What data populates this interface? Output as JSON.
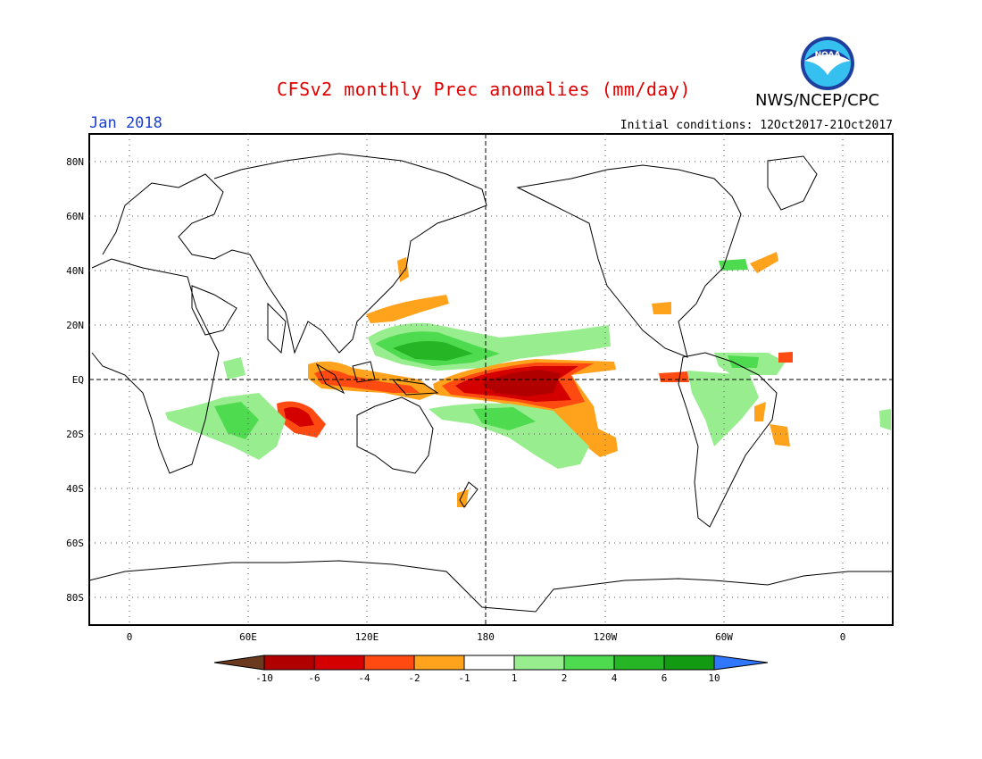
{
  "header": {
    "title": "CFSv2 monthly Prec anomalies (mm/day)",
    "org": "NWS/NCEP/CPC",
    "month": "Jan 2018",
    "initial_conditions": "Initial conditions: 12Oct2017-21Oct2017",
    "logo_text": "NOAA"
  },
  "map": {
    "lat_labels": [
      "80N",
      "60N",
      "40N",
      "20N",
      "EQ",
      "20S",
      "40S",
      "60S",
      "80S"
    ],
    "lon_labels": [
      "0",
      "60E",
      "120E",
      "180",
      "120W",
      "60W",
      "0"
    ]
  },
  "colorbar": {
    "labels": [
      "-10",
      "-6",
      "-4",
      "-2",
      "-1",
      "1",
      "2",
      "4",
      "6",
      "10"
    ],
    "colors": [
      "#6b3a1e",
      "#b00000",
      "#d40000",
      "#ff4a12",
      "#ffa21c",
      "#ffffff",
      "#98ee8f",
      "#4fdb4f",
      "#25b525",
      "#129a12",
      "#2f77ff"
    ]
  },
  "colors": {
    "title": "#e00000",
    "month": "#1a3fd0"
  }
}
